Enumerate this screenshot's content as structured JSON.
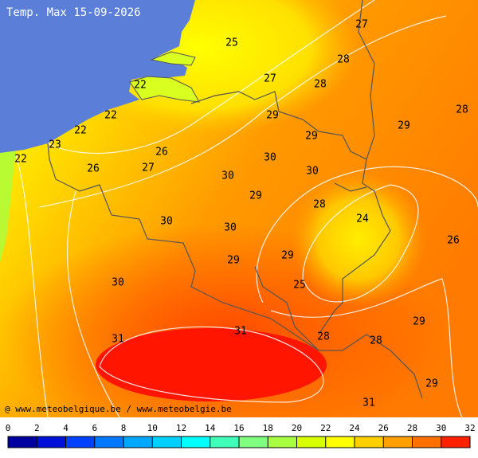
{
  "title": "Temp. Max 15-09-2026",
  "credit": "@ www.meteobelgique.be / www.meteobelgie.be",
  "labels": [
    "27",
    "25",
    "28",
    "27",
    "22",
    "28",
    "28",
    "22",
    "29",
    "29",
    "22",
    "29",
    "23",
    "26",
    "22",
    "30",
    "27",
    "26",
    "30",
    "30",
    "29",
    "28",
    "24",
    "30",
    "30",
    "26",
    "29",
    "29",
    "30",
    "25",
    "29",
    "31",
    "31",
    "28",
    "28",
    "29",
    "31"
  ],
  "scale": {
    "ticks": [
      0,
      2,
      4,
      6,
      8,
      10,
      12,
      14,
      16,
      18,
      20,
      22,
      24,
      26,
      28,
      30,
      32
    ],
    "colors": [
      "#0000a0",
      "#0010d8",
      "#0040ff",
      "#0078ff",
      "#00a8ff",
      "#00d0ff",
      "#00ffff",
      "#40ffb8",
      "#80ff80",
      "#a8ff40",
      "#d8ff00",
      "#ffff00",
      "#ffd000",
      "#ffa000",
      "#ff7000",
      "#ff2000"
    ]
  }
}
